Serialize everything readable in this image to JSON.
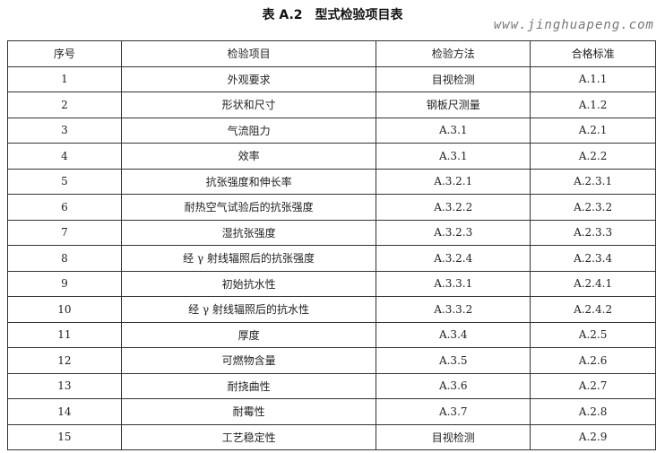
{
  "title": "表 A.2　型式检验项目表",
  "watermark": "www.jinghuapeng.com",
  "headers": [
    "序号",
    "检验项目",
    "检验方法",
    "合格标准"
  ],
  "rows": [
    [
      "1",
      "外观要求",
      "目视检测",
      "A.1.1"
    ],
    [
      "2",
      "形状和尺寸",
      "钢板尺测量",
      "A.1.2"
    ],
    [
      "3",
      "气流阻力",
      "A.3.1",
      "A.2.1"
    ],
    [
      "4",
      "效率",
      "A.3.1",
      "A.2.2"
    ],
    [
      "5",
      "抗张强度和伸长率",
      "A.3.2.1",
      "A.2.3.1"
    ],
    [
      "6",
      "耐热空气试验后的抗张强度",
      "A.3.2.2",
      "A.2.3.2"
    ],
    [
      "7",
      "湿抗张强度",
      "A.3.2.3",
      "A.2.3.3"
    ],
    [
      "8",
      "经 γ 射线辐照后的抗张强度",
      "A.3.2.4",
      "A.2.3.4"
    ],
    [
      "9",
      "初始抗水性",
      "A.3.3.1",
      "A.2.4.1"
    ],
    [
      "10",
      "经 γ 射线辐照后的抗水性",
      "A.3.3.2",
      "A.2.4.2"
    ],
    [
      "11",
      "厚度",
      "A.3.4",
      "A.2.5"
    ],
    [
      "12",
      "可燃物含量",
      "A.3.5",
      "A.2.6"
    ],
    [
      "13",
      "耐挠曲性",
      "A.3.6",
      "A.2.7"
    ],
    [
      "14",
      "耐霉性",
      "A.3.7",
      "A.2.8"
    ],
    [
      "15",
      "工艺稳定性",
      "目视检测",
      "A.2.9"
    ]
  ]
}
